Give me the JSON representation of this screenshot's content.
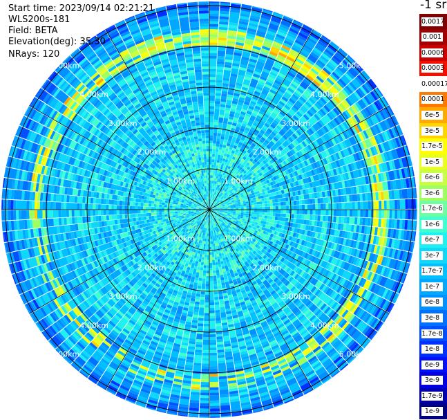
{
  "header": {
    "start_time": "Start time: 2023/09/14 02:21:21",
    "instrument": "WLS200s-181",
    "field": "Field: BETA",
    "elevation": "Elevation(deg): 35.30",
    "nrays": "NRays: 120"
  },
  "colorbar": {
    "unit_label": "-1 sr",
    "labels": [
      "0.0017",
      "0.001",
      "0.0006",
      "0.0003",
      "0.00017",
      "0.0001",
      "6e-5",
      "3e-5",
      "1.7e-5",
      "1e-5",
      "6e-6",
      "3e-6",
      "1.7e-6",
      "1e-6",
      "6e-7",
      "3e-7",
      "1.7e-7",
      "1e-7",
      "6e-8",
      "3e-8",
      "1.7e-8",
      "1e-8",
      "6e-9",
      "3e-9",
      "1.7e-9",
      "1e-9"
    ],
    "colors": [
      "#7f0000",
      "#a00000",
      "#c80000",
      "#f01000",
      "#ffffff",
      "#ff7800",
      "#ffa800",
      "#ffd400",
      "#ffff00",
      "#e8ff20",
      "#c8ff40",
      "#a0ff60",
      "#70ffa0",
      "#40ffd0",
      "#20f0f0",
      "#10d8f8",
      "#00c0ff",
      "#00a8ff",
      "#0090ff",
      "#0070ff",
      "#0050ff",
      "#0030ff",
      "#0010f8",
      "#0000e0",
      "#0000b0",
      "#000080"
    ]
  },
  "chart_data": {
    "type": "heatmap",
    "projection": "polar-ppi",
    "field": "BETA",
    "nrays": 120,
    "elevation_deg": 35.3,
    "range_rings_km": [
      1.0,
      2.0,
      3.0,
      4.0,
      5.0
    ],
    "range_label_suffix": "km",
    "max_range_km": 5.1,
    "spoke_angles_deg": [
      0,
      30,
      60,
      90,
      120,
      150,
      180,
      210,
      240,
      270,
      300,
      330
    ],
    "ring_label_bearings_deg": [
      45,
      135,
      225,
      315
    ],
    "color_scale": "log",
    "value_range": [
      1e-09,
      0.0017
    ],
    "background_level_by_range": [
      {
        "range_km": [
          0.0,
          1.6
        ],
        "level_index": 15
      },
      {
        "range_km": [
          1.6,
          3.8
        ],
        "level_index": 16
      },
      {
        "range_km": [
          3.8,
          4.8
        ],
        "level_index": 17
      },
      {
        "range_km": [
          4.8,
          5.1
        ],
        "level_index": 19
      }
    ],
    "enhanced_ring": {
      "range_km": [
        4.05,
        4.45
      ],
      "level_index": 9
    },
    "grid": true
  }
}
